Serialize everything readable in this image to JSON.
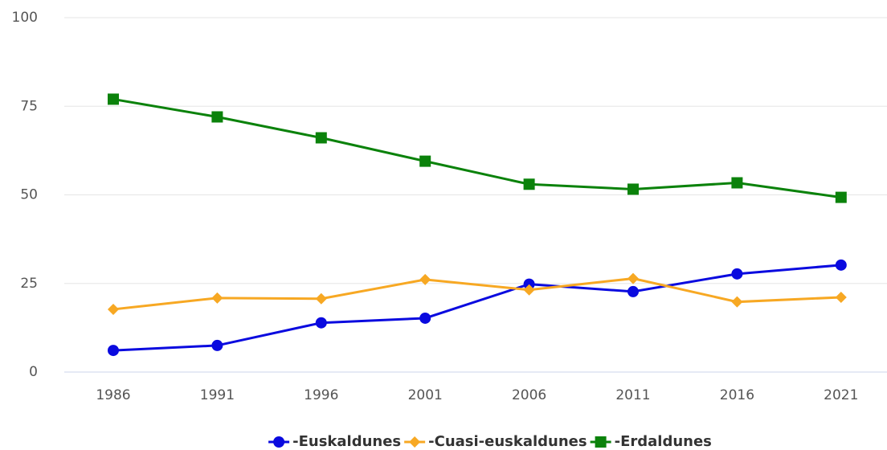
{
  "chart_data": {
    "type": "line",
    "categories": [
      "1986",
      "1991",
      "1996",
      "2001",
      "2006",
      "2011",
      "2016",
      "2021"
    ],
    "series": [
      {
        "name": "-Euskaldunes",
        "color": "#0a0adf",
        "marker": "circle",
        "values": [
          6.1,
          7.5,
          13.9,
          15.2,
          24.8,
          22.7,
          27.7,
          30.2
        ]
      },
      {
        "name": "-Cuasi-euskaldunes",
        "color": "#f7a823",
        "marker": "diamond",
        "values": [
          17.7,
          20.9,
          20.7,
          26.1,
          23.2,
          26.4,
          19.8,
          21.1
        ]
      },
      {
        "name": "-Erdaldunes",
        "color": "#0b820b",
        "marker": "square",
        "values": [
          77.0,
          72.0,
          66.1,
          59.5,
          53.0,
          51.6,
          53.4,
          49.3
        ]
      }
    ],
    "ylim": [
      0,
      100
    ],
    "yticks": [
      0,
      25,
      50,
      75,
      100
    ],
    "grid": true,
    "legend": "bottom"
  }
}
